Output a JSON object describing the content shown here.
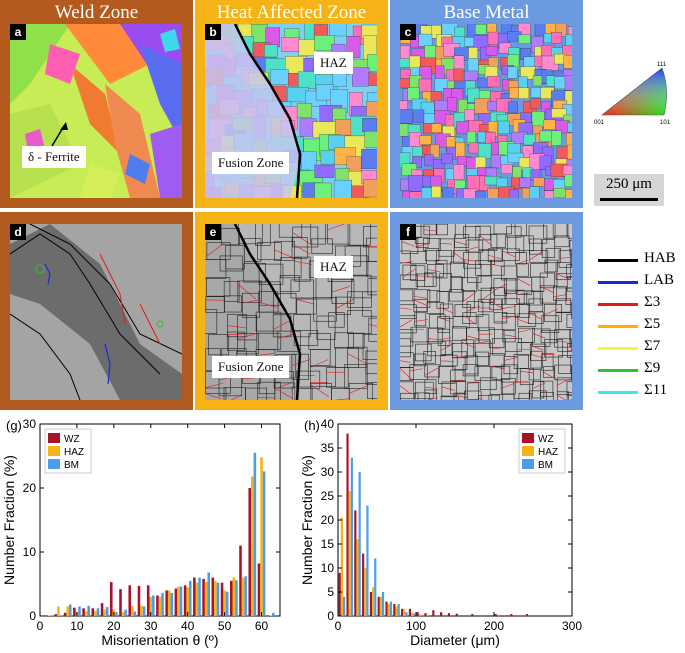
{
  "columns": [
    {
      "title": "Weld Zone",
      "color": "#b35a1f"
    },
    {
      "title": "Heat Affected Zone",
      "color": "#f5b315"
    },
    {
      "title": "Base Metal",
      "color": "#6b9ae0"
    }
  ],
  "panel_letters": [
    "a",
    "b",
    "c",
    "d",
    "e",
    "f"
  ],
  "annotations": {
    "delta_ferrite": "δ - Ferrite",
    "haz_top": "HAZ",
    "fusion_top": "Fusion Zone",
    "haz_bottom": "HAZ",
    "fusion_bottom": "Fusion Zone"
  },
  "ipf_key": {
    "top": "111",
    "left": "001",
    "right": "101"
  },
  "scalebar": {
    "label": "250 μm"
  },
  "boundary_legend": [
    {
      "label": "HAB",
      "color": "#000000"
    },
    {
      "label": "LAB",
      "color": "#1a2bd6"
    },
    {
      "label": "Σ3",
      "color": "#e31a1c"
    },
    {
      "label": "Σ5",
      "color": "#ffb000"
    },
    {
      "label": "Σ7",
      "color": "#f2f542"
    },
    {
      "label": "Σ9",
      "color": "#2fc22f"
    },
    {
      "label": "Σ11",
      "color": "#39e8f2"
    }
  ],
  "chart_data": [
    {
      "type": "bar",
      "panel_label": "(g)",
      "xlabel": "Misorientation θ (º)",
      "ylabel": "Number Fraction (%)",
      "xlim": [
        0,
        65
      ],
      "ylim": [
        0,
        30
      ],
      "xticks": [
        0,
        10,
        20,
        30,
        40,
        50,
        60
      ],
      "yticks": [
        0,
        10,
        20,
        30
      ],
      "legend_position": "top-left",
      "bin_width": 2.5,
      "x": [
        2.5,
        5,
        7.5,
        10,
        12.5,
        15,
        17.5,
        20,
        22.5,
        25,
        27.5,
        30,
        32.5,
        35,
        37.5,
        40,
        42.5,
        45,
        47.5,
        50,
        52.5,
        55,
        57.5,
        60,
        62.5
      ],
      "series": [
        {
          "name": "WZ",
          "color": "#a8122a",
          "values": [
            0.1,
            0.3,
            0.5,
            1.3,
            1.2,
            1.2,
            2.0,
            5.3,
            4.2,
            4.8,
            4.7,
            4.8,
            3.2,
            4.0,
            4.3,
            4.8,
            6.0,
            5.8,
            6.0,
            5.2,
            5.5,
            11.0,
            20.0,
            8.2,
            0.1
          ]
        },
        {
          "name": "HAZ",
          "color": "#f5b315",
          "values": [
            0.1,
            1.5,
            1.5,
            0.6,
            0.7,
            0.8,
            1.0,
            1.0,
            0.6,
            1.6,
            1.6,
            3.0,
            3.0,
            4.0,
            4.6,
            4.5,
            5.2,
            5.3,
            5.5,
            4.0,
            6.0,
            6.0,
            21.8,
            24.8,
            0.1
          ]
        },
        {
          "name": "BM",
          "color": "#4a9ee8",
          "values": [
            0.1,
            0.1,
            1.8,
            1.5,
            1.6,
            1.2,
            1.4,
            0.6,
            1.0,
            0.7,
            1.5,
            3.2,
            3.6,
            3.6,
            4.6,
            5.5,
            6.0,
            6.8,
            5.2,
            3.8,
            5.6,
            6.2,
            25.5,
            22.6,
            0.5
          ]
        }
      ]
    },
    {
      "type": "bar",
      "panel_label": "(h)",
      "xlabel": "Diameter (μm)",
      "ylabel": "Number Fraction (%)",
      "xlim": [
        0,
        300
      ],
      "ylim": [
        0,
        40
      ],
      "xticks": [
        0,
        100,
        200,
        300
      ],
      "yticks": [
        0,
        5,
        10,
        15,
        20,
        25,
        30,
        35,
        40
      ],
      "legend_position": "top-right",
      "bin_width": 10,
      "x": [
        5,
        15,
        25,
        35,
        45,
        55,
        65,
        75,
        85,
        95,
        105,
        115,
        125,
        135,
        145,
        155,
        175,
        205,
        225,
        245
      ],
      "series": [
        {
          "name": "WZ",
          "color": "#a8122a",
          "values": [
            9,
            38,
            22,
            13,
            5,
            4,
            3,
            2.5,
            1.5,
            1.5,
            0.8,
            0.6,
            1.2,
            0.8,
            0.6,
            0.5,
            0.4,
            0.4,
            0.4,
            0.4
          ]
        },
        {
          "name": "HAZ",
          "color": "#f5b315",
          "values": [
            20.5,
            26,
            16,
            10,
            6,
            4,
            2.5,
            2.0,
            1.5,
            0.6,
            0.4,
            0.3,
            0,
            0,
            0,
            0,
            0,
            0,
            0,
            0
          ]
        },
        {
          "name": "BM",
          "color": "#4a9ee8",
          "values": [
            4,
            33,
            30,
            23,
            12,
            5,
            3,
            2.5,
            0.8,
            0.5,
            0.2,
            0,
            0,
            0,
            0,
            0,
            0,
            0,
            0,
            0
          ]
        }
      ]
    }
  ]
}
